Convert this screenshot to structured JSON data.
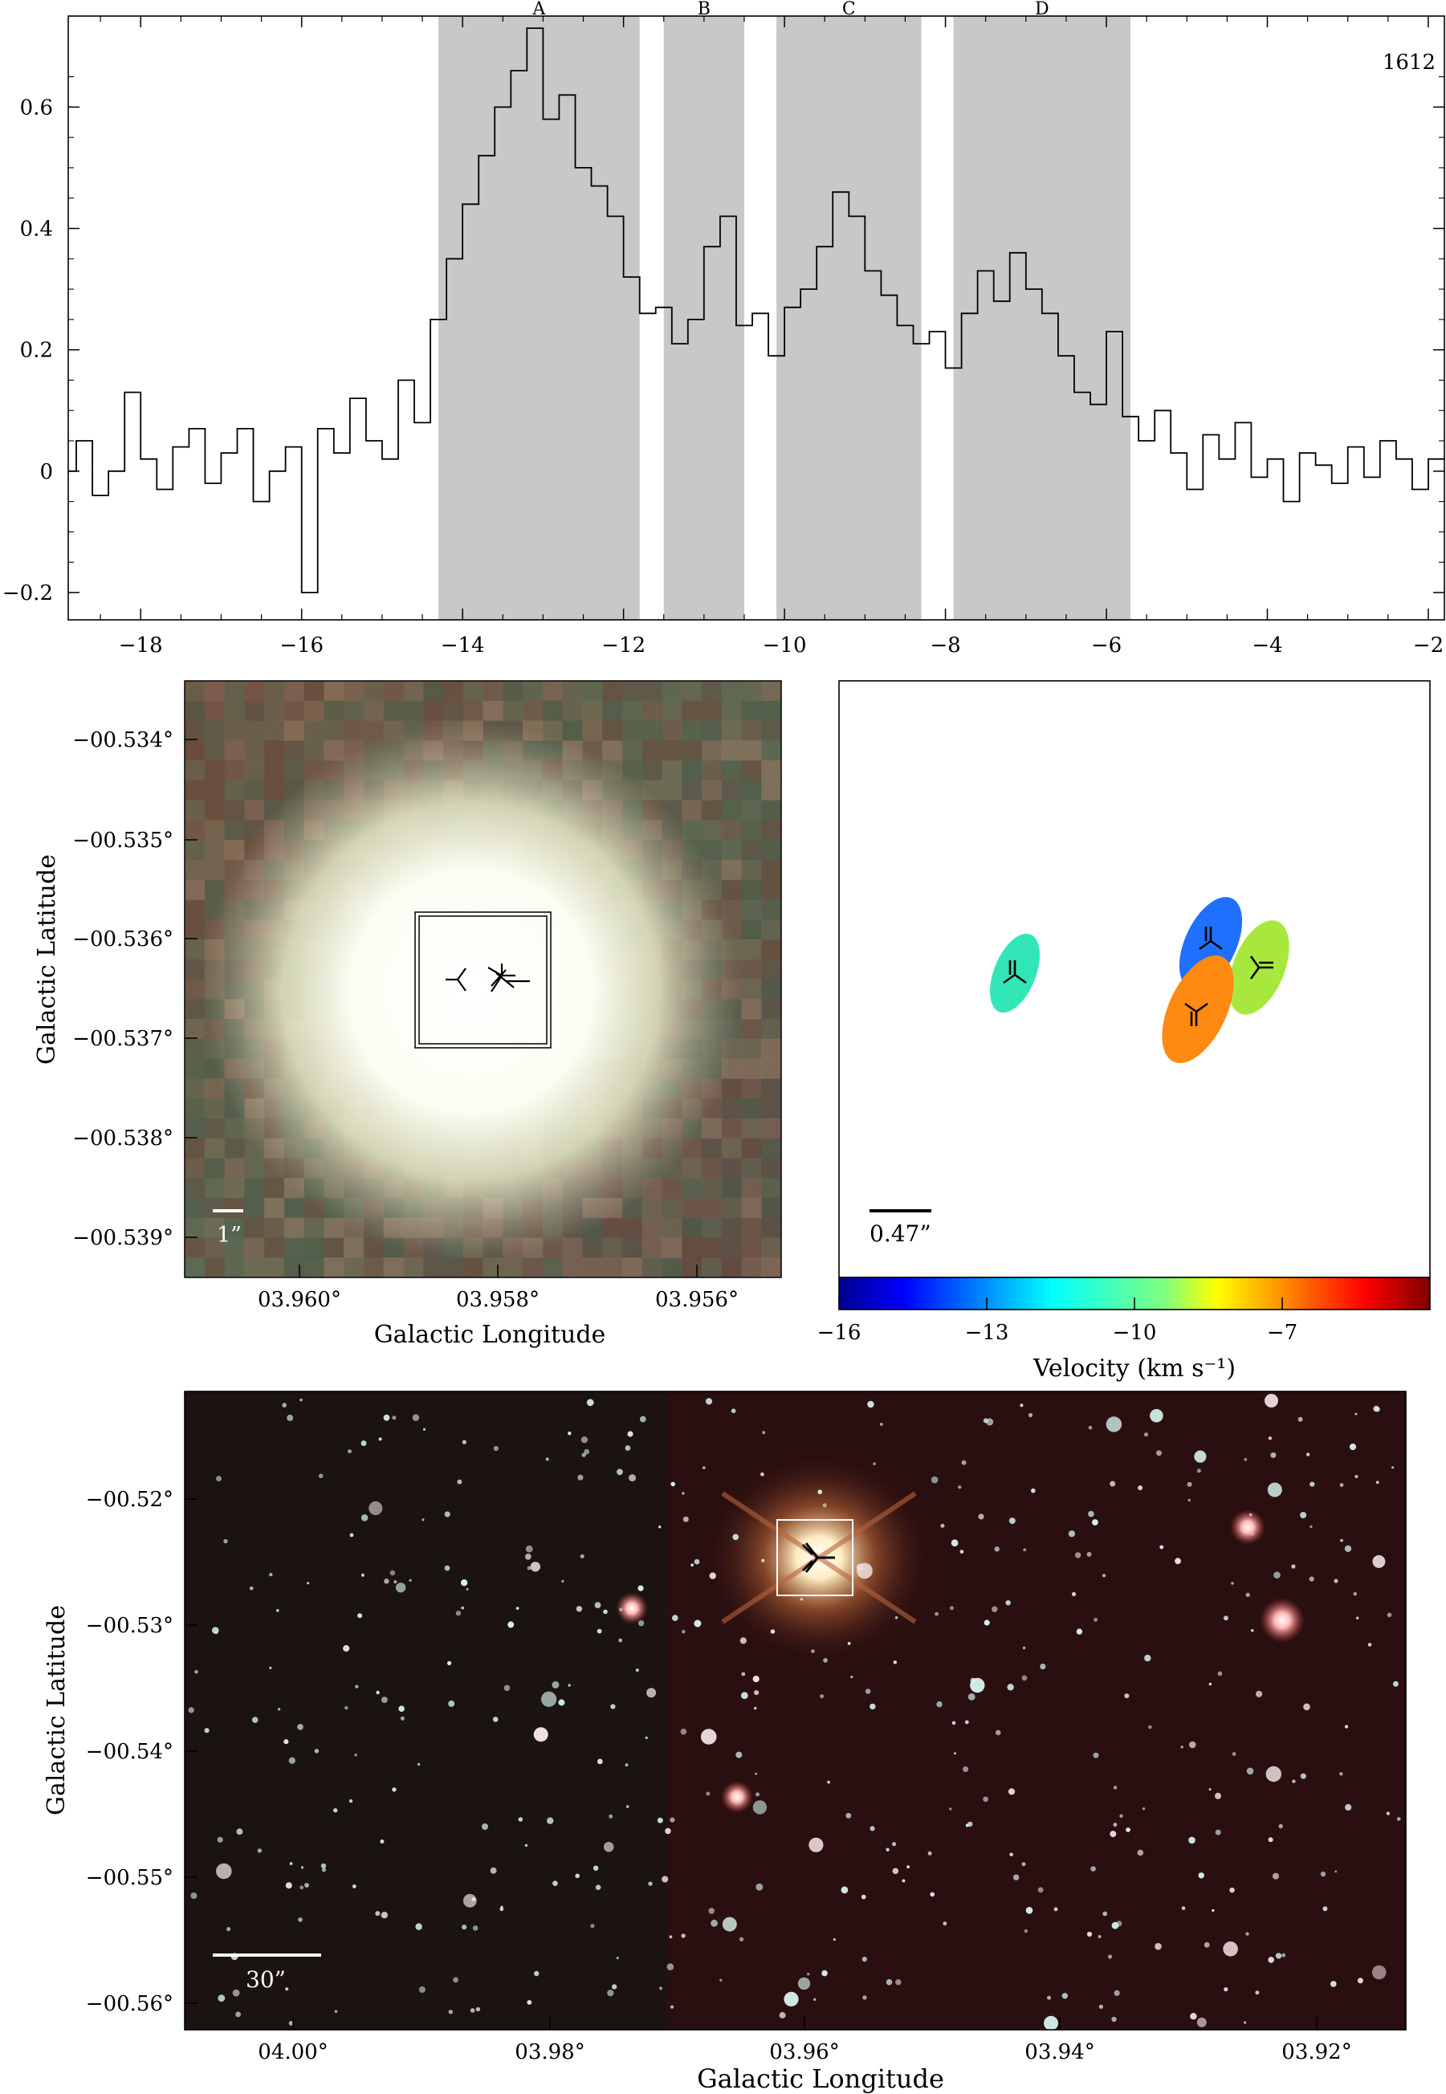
{
  "figure": {
    "spectrum": {
      "label": "1612",
      "component_labels": [
        "A",
        "B",
        "C",
        "D"
      ],
      "components": [
        {
          "label": "A",
          "v_min": -14.3,
          "v_max": -11.8
        },
        {
          "label": "B",
          "v_min": -11.5,
          "v_max": -10.5
        },
        {
          "label": "C",
          "v_min": -10.1,
          "v_max": -8.3
        },
        {
          "label": "D",
          "v_min": -7.9,
          "v_max": -5.7
        }
      ],
      "x_ticks": [
        "−18",
        "−16",
        "−14",
        "−12",
        "−10",
        "−8",
        "−6",
        "−4",
        "−2"
      ],
      "y_ticks": [
        "−0.2",
        "0",
        "0.2",
        "0.4",
        "0.6"
      ],
      "colors": {
        "shade": "#c8c8c8",
        "line": "#000000"
      }
    },
    "zoom_panel": {
      "x_label": "Galactic Longitude",
      "y_label": "Galactic Latitude",
      "x_ticks": [
        "03.960°",
        "03.958°",
        "03.956°"
      ],
      "y_ticks": [
        "−00.534°",
        "−00.535°",
        "−00.536°",
        "−00.537°",
        "−00.538°",
        "−00.539°"
      ],
      "scale_label": "1”"
    },
    "maser_panel": {
      "scale_label": "0.47”",
      "colorbar_label": "Velocity (km s⁻¹)",
      "colorbar_ticks": [
        "−16",
        "−13",
        "−10",
        "−7"
      ],
      "colorbar_range": [
        -16,
        -4
      ],
      "spots": [
        {
          "component": "A",
          "velocity": -13.0,
          "color": "#2070ff"
        },
        {
          "component": "B",
          "velocity": -11.0,
          "color": "#33e6b8"
        },
        {
          "component": "C",
          "velocity": -9.3,
          "color": "#a8e83e"
        },
        {
          "component": "D",
          "velocity": -7.0,
          "color": "#ff8a12"
        }
      ]
    },
    "wide_panel": {
      "x_label": "Galactic Longitude",
      "y_label": "Galactic Latitude",
      "x_ticks": [
        "04.00°",
        "03.98°",
        "03.96°",
        "03.94°",
        "03.92°"
      ],
      "y_ticks": [
        "−00.52°",
        "−00.53°",
        "−00.54°",
        "−00.55°",
        "−00.56°"
      ],
      "scale_label": "30”"
    }
  },
  "chart_data": {
    "type": "line",
    "title": "",
    "xlabel": "",
    "ylabel": "",
    "xlim": [
      -18.9,
      -1.8
    ],
    "ylim": [
      -0.245,
      0.75
    ],
    "series": [
      {
        "x": [
          -18.9,
          -18.7,
          -18.5,
          -18.3,
          -18.1,
          -17.9,
          -17.7,
          -17.5,
          -17.3,
          -17.1,
          -16.9,
          -16.7,
          -16.5,
          -16.3,
          -16.1,
          -15.9,
          -15.7,
          -15.5,
          -15.3,
          -15.1,
          -14.9,
          -14.7,
          -14.5,
          -14.3,
          -14.1,
          -13.9,
          -13.7,
          -13.5,
          -13.3,
          -13.1,
          -12.9,
          -12.7,
          -12.5,
          -12.3,
          -12.1,
          -11.9,
          -11.7,
          -11.5,
          -11.3,
          -11.1,
          -10.9,
          -10.7,
          -10.5,
          -10.3,
          -10.1,
          -9.9,
          -9.7,
          -9.5,
          -9.3,
          -9.1,
          -8.9,
          -8.7,
          -8.5,
          -8.3,
          -8.1,
          -7.9,
          -7.7,
          -7.5,
          -7.3,
          -7.1,
          -6.9,
          -6.7,
          -6.5,
          -6.3,
          -6.1,
          -5.9,
          -5.7,
          -5.5,
          -5.3,
          -5.1,
          -4.9,
          -4.7,
          -4.5,
          -4.3,
          -4.1,
          -3.9,
          -3.7,
          -3.5,
          -3.3,
          -3.1,
          -2.9,
          -2.7,
          -2.5,
          -2.3,
          -2.1,
          -1.9
        ],
        "y": [
          0.0,
          0.05,
          -0.04,
          0.0,
          0.13,
          0.02,
          -0.03,
          0.04,
          0.07,
          -0.02,
          0.03,
          0.07,
          -0.05,
          0.0,
          0.04,
          -0.2,
          0.07,
          0.03,
          0.12,
          0.05,
          0.02,
          0.15,
          0.08,
          0.25,
          0.35,
          0.44,
          0.52,
          0.6,
          0.66,
          0.73,
          0.58,
          0.62,
          0.5,
          0.47,
          0.42,
          0.32,
          0.26,
          0.27,
          0.21,
          0.25,
          0.37,
          0.42,
          0.24,
          0.26,
          0.19,
          0.27,
          0.3,
          0.37,
          0.46,
          0.42,
          0.33,
          0.29,
          0.24,
          0.21,
          0.23,
          0.17,
          0.26,
          0.33,
          0.28,
          0.36,
          0.3,
          0.26,
          0.19,
          0.13,
          0.11,
          0.23,
          0.09,
          0.05,
          0.1,
          0.03,
          -0.03,
          0.06,
          0.02,
          0.08,
          -0.01,
          0.02,
          -0.05,
          0.03,
          0.01,
          -0.02,
          0.04,
          -0.01,
          0.05,
          0.02,
          -0.03,
          0.02
        ]
      }
    ],
    "shaded_regions": [
      [
        -14.3,
        -11.8
      ],
      [
        -11.5,
        -10.5
      ],
      [
        -10.1,
        -8.3
      ],
      [
        -7.9,
        -5.7
      ]
    ],
    "region_labels": [
      "A",
      "B",
      "C",
      "D"
    ],
    "annotation": "1612",
    "grid": false,
    "legend": "none"
  }
}
